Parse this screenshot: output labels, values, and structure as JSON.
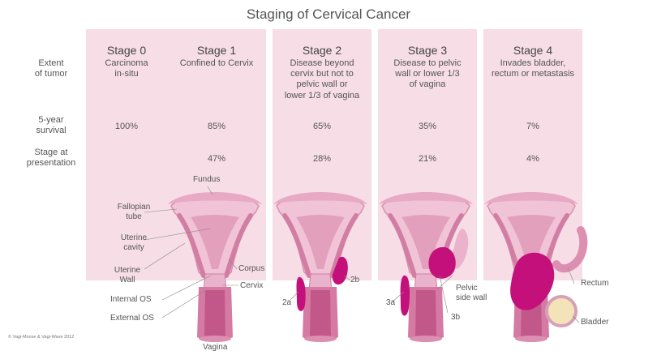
{
  "title": "Staging of Cervical Cancer",
  "row_labels": {
    "extent": "Extent\nof tumor",
    "survival": "5-year\nsurvival",
    "presentation": "Stage at\npresentation"
  },
  "stages": [
    {
      "name": "Stage 0",
      "extent": "Carcinoma\nin-situ",
      "survival": "100%",
      "presentation": ""
    },
    {
      "name": "Stage 1",
      "extent": "Confined to Cervix",
      "survival": "85%",
      "presentation": "47%"
    },
    {
      "name": "Stage 2",
      "extent": "Disease beyond\ncervix but not to\npelvic wall or\nlower 1/3 of vagina",
      "survival": "65%",
      "presentation": "28%"
    },
    {
      "name": "Stage 3",
      "extent": "Disease to pelvic\nwall or lower 1/3\nof vagina",
      "survival": "35%",
      "presentation": "21%"
    },
    {
      "name": "Stage 4",
      "extent": "Invades bladder,\nrectum or metastasis",
      "survival": "7%",
      "presentation": "4%"
    }
  ],
  "anatomy_labels": {
    "fundus": "Fundus",
    "fallopian": "Fallopian\ntube",
    "uterine_cavity": "Uterine\ncavity",
    "uterine_wall": "Uterine\nWall",
    "corpus": "Corpus",
    "cervix": "Cervix",
    "internal_os": "Internal OS",
    "external_os": "External OS",
    "vagina": "Vagina",
    "s2a": "2a",
    "s2b": "2b",
    "s3a": "3a",
    "s3b": "3b",
    "pelvic_side_wall": "Pelvic\nside wall",
    "rectum": "Rectum",
    "bladder": "Bladder"
  },
  "copyright": "© Vagi-Moose & Vagi-Wave 2012",
  "colors": {
    "column_bg": "#f6dde6",
    "uterus_light": "#f0c4d6",
    "uterus_mid": "#dc8fb0",
    "uterus_dark": "#c2588a",
    "tumor": "#c4107a"
  }
}
